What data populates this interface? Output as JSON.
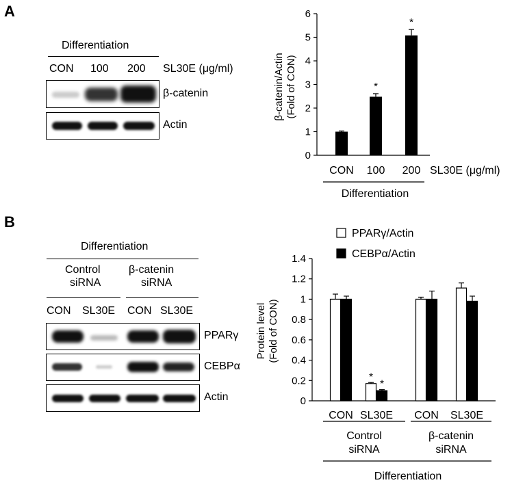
{
  "panel_a": {
    "label": "A",
    "blot": {
      "condition": "Differentiation",
      "lanes": [
        "CON",
        "100",
        "200"
      ],
      "treatment_label": "SL30E (μg/ml)",
      "rows": [
        "β-catenin",
        "Actin"
      ]
    },
    "axis_labels": {
      "xaxis_treatment": "SL30E (μg/ml)",
      "xaxis_group": "Differentiation",
      "significance_marker": "*"
    }
  },
  "panel_b": {
    "label": "B",
    "blot": {
      "condition": "Differentiation",
      "group1": "Control siRNA",
      "group2": "β-catenin siRNA",
      "lanes": [
        "CON",
        "SL30E",
        "CON",
        "SL30E"
      ],
      "rows": [
        "PPARγ",
        "CEBPα",
        "Actin"
      ]
    },
    "axis_labels": {
      "xaxis_group1": [
        "Control",
        "siRNA"
      ],
      "xaxis_group2": [
        "β-catenin",
        "siRNA"
      ],
      "xaxis_condition": "Differentiation",
      "significance_marker": "*"
    }
  },
  "chart_data": [
    {
      "type": "bar",
      "categories": [
        "CON",
        "100",
        "200"
      ],
      "values": [
        1.0,
        2.48,
        5.08
      ],
      "errors": [
        0.03,
        0.13,
        0.25
      ],
      "significant": [
        false,
        true,
        true
      ],
      "ylabel": "β-catenin/Actin (Fold of CON)",
      "ylim": [
        0,
        6
      ],
      "yticks": [
        0,
        1,
        2,
        3,
        4,
        5,
        6
      ],
      "bar_color": "#000000"
    },
    {
      "type": "bar",
      "categories": [
        "CON",
        "SL30E",
        "CON",
        "SL30E"
      ],
      "series": [
        {
          "name": "PPARγ/Actin",
          "values": [
            1.0,
            0.17,
            1.0,
            1.11
          ],
          "errors": [
            0.05,
            0.01,
            0.02,
            0.05
          ],
          "significant": [
            false,
            true,
            false,
            false
          ],
          "color": "#ffffff"
        },
        {
          "name": "CEBPα/Actin",
          "values": [
            1.0,
            0.1,
            1.0,
            0.98
          ],
          "errors": [
            0.03,
            0.01,
            0.08,
            0.05
          ],
          "significant": [
            false,
            true,
            false,
            false
          ],
          "color": "#000000"
        }
      ],
      "ylabel": "Protein level (Fold of CON)",
      "ylim": [
        0,
        1.4
      ],
      "yticks": [
        "0",
        "0.2",
        "0.4",
        "0.6",
        "0.8",
        "1",
        "1.2",
        "1.4"
      ],
      "legend": "top-left"
    }
  ]
}
